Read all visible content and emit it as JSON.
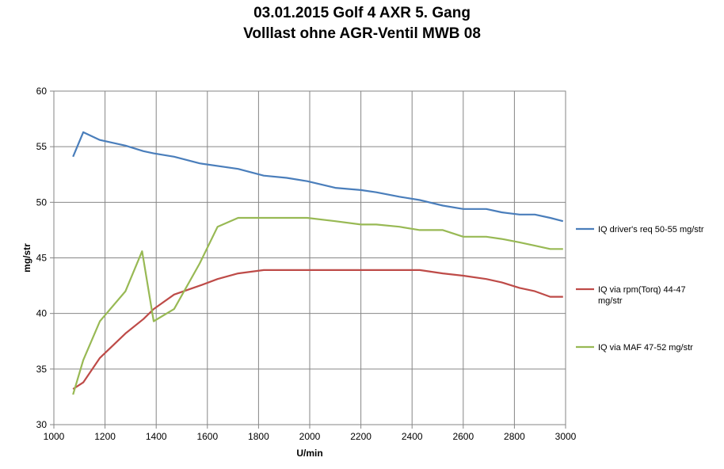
{
  "chart_data": {
    "type": "line",
    "title": "03.01.2015 Golf 4 AXR 5. Gang",
    "subtitle": "Volllast ohne AGR-Ventil MWB 08",
    "xlabel": "U/min",
    "ylabel": "mg/str",
    "xlim": [
      1000,
      3000
    ],
    "ylim": [
      30,
      60
    ],
    "xticks": [
      1000,
      1200,
      1400,
      1600,
      1800,
      2000,
      2200,
      2400,
      2600,
      2800,
      3000
    ],
    "yticks": [
      30,
      35,
      40,
      45,
      50,
      55,
      60
    ],
    "grid": true,
    "legend_position": "right",
    "series": [
      {
        "name": "IQ driver's req 50-55  mg/str",
        "color": "#4A7EBB",
        "points": [
          [
            1075,
            54.1
          ],
          [
            1115,
            56.3
          ],
          [
            1180,
            55.6
          ],
          [
            1280,
            55.1
          ],
          [
            1350,
            54.6
          ],
          [
            1390,
            54.4
          ],
          [
            1470,
            54.1
          ],
          [
            1570,
            53.5
          ],
          [
            1720,
            53.0
          ],
          [
            1820,
            52.4
          ],
          [
            1910,
            52.2
          ],
          [
            1990,
            51.9
          ],
          [
            2100,
            51.3
          ],
          [
            2200,
            51.1
          ],
          [
            2260,
            50.9
          ],
          [
            2350,
            50.5
          ],
          [
            2430,
            50.2
          ],
          [
            2520,
            49.7
          ],
          [
            2600,
            49.4
          ],
          [
            2690,
            49.4
          ],
          [
            2750,
            49.1
          ],
          [
            2820,
            48.9
          ],
          [
            2880,
            48.9
          ],
          [
            2940,
            48.6
          ],
          [
            2990,
            48.3
          ]
        ]
      },
      {
        "name": "IQ via rpm(Torq) 44-47  mg/str",
        "color": "#BE4B48",
        "points": [
          [
            1075,
            33.2
          ],
          [
            1115,
            33.8
          ],
          [
            1180,
            36.0
          ],
          [
            1280,
            38.2
          ],
          [
            1350,
            39.5
          ],
          [
            1390,
            40.4
          ],
          [
            1470,
            41.7
          ],
          [
            1570,
            42.5
          ],
          [
            1640,
            43.1
          ],
          [
            1720,
            43.6
          ],
          [
            1820,
            43.9
          ],
          [
            1910,
            43.9
          ],
          [
            1990,
            43.9
          ],
          [
            2100,
            43.9
          ],
          [
            2200,
            43.9
          ],
          [
            2260,
            43.9
          ],
          [
            2350,
            43.9
          ],
          [
            2430,
            43.9
          ],
          [
            2520,
            43.6
          ],
          [
            2600,
            43.4
          ],
          [
            2690,
            43.1
          ],
          [
            2750,
            42.8
          ],
          [
            2820,
            42.3
          ],
          [
            2880,
            42.0
          ],
          [
            2940,
            41.5
          ],
          [
            2990,
            41.5
          ]
        ]
      },
      {
        "name": "IQ via MAF 47-52  mg/str",
        "color": "#98B954",
        "points": [
          [
            1075,
            32.7
          ],
          [
            1115,
            35.8
          ],
          [
            1180,
            39.3
          ],
          [
            1280,
            42.0
          ],
          [
            1345,
            45.6
          ],
          [
            1390,
            39.3
          ],
          [
            1470,
            40.4
          ],
          [
            1570,
            44.5
          ],
          [
            1640,
            47.8
          ],
          [
            1720,
            48.6
          ],
          [
            1820,
            48.6
          ],
          [
            1910,
            48.6
          ],
          [
            1990,
            48.6
          ],
          [
            2100,
            48.3
          ],
          [
            2200,
            48.0
          ],
          [
            2260,
            48.0
          ],
          [
            2350,
            47.8
          ],
          [
            2430,
            47.5
          ],
          [
            2520,
            47.5
          ],
          [
            2600,
            46.9
          ],
          [
            2690,
            46.9
          ],
          [
            2750,
            46.7
          ],
          [
            2820,
            46.4
          ],
          [
            2880,
            46.1
          ],
          [
            2940,
            45.8
          ],
          [
            2990,
            45.8
          ]
        ]
      }
    ]
  }
}
